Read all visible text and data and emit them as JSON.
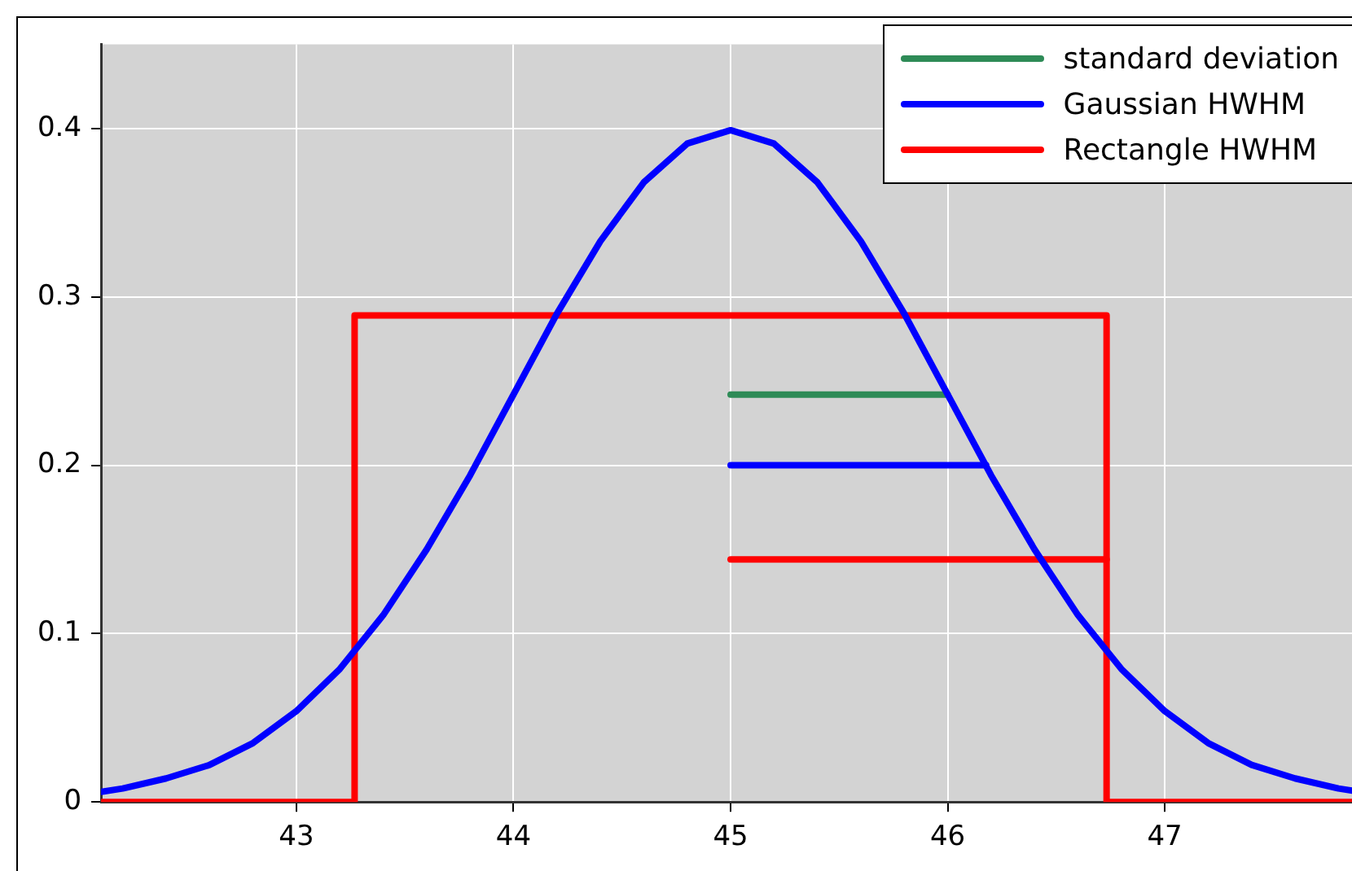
{
  "chart_data": {
    "type": "line",
    "xlim": [
      42.1,
      47.9
    ],
    "ylim": [
      0,
      0.45
    ],
    "xticks": [
      43,
      44,
      45,
      46,
      47
    ],
    "yticks": [
      0,
      0.1,
      0.2,
      0.3,
      0.4
    ],
    "grid": true,
    "legend": "top right",
    "line_style": "solid",
    "marker": "none",
    "series": [
      {
        "color": "#0000ff",
        "x": [
          42.1,
          42.2,
          42.4,
          42.6,
          42.8,
          43.0,
          43.2,
          43.4,
          43.6,
          43.8,
          44.0,
          44.2,
          44.4,
          44.6,
          44.8,
          45.0,
          45.2,
          45.4,
          45.6,
          45.8,
          46.0,
          46.2,
          46.4,
          46.6,
          46.8,
          47.0,
          47.2,
          47.4,
          47.6,
          47.8,
          47.9
        ],
        "values": [
          0.006,
          0.008,
          0.014,
          0.022,
          0.035,
          0.054,
          0.079,
          0.111,
          0.15,
          0.194,
          0.242,
          0.29,
          0.333,
          0.368,
          0.391,
          0.399,
          0.391,
          0.368,
          0.333,
          0.29,
          0.242,
          0.194,
          0.15,
          0.111,
          0.079,
          0.054,
          0.035,
          0.022,
          0.014,
          0.008,
          0.006
        ]
      },
      {
        "color": "#ff0000",
        "x": [
          42.1,
          43.268,
          43.268,
          46.732,
          46.732,
          47.9
        ],
        "values": [
          0,
          0,
          0.289,
          0.289,
          0,
          0
        ]
      },
      {
        "name": "standard deviation",
        "color": "#2e8b57",
        "x": [
          45,
          46
        ],
        "values": [
          0.242,
          0.242
        ]
      },
      {
        "name": "Gaussian HWHM",
        "color": "#0000ff",
        "x": [
          45,
          46.177
        ],
        "values": [
          0.2,
          0.2
        ]
      },
      {
        "name": "Rectangle HWHM",
        "color": "#ff0000",
        "x": [
          45,
          46.732
        ],
        "values": [
          0.144,
          0.144
        ]
      }
    ]
  }
}
